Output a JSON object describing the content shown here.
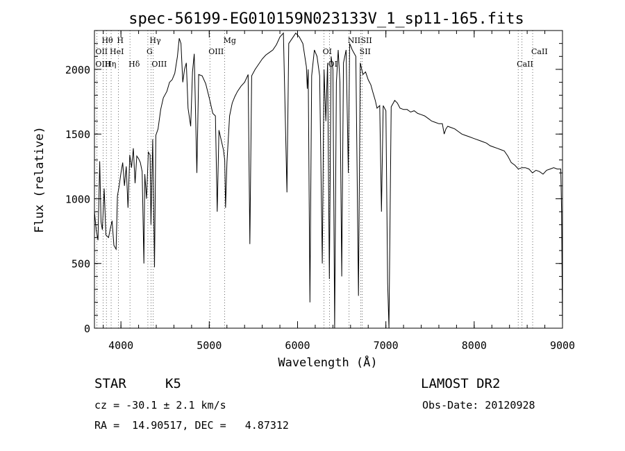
{
  "chart_data": {
    "type": "line",
    "title": "spec-56199-EG010159N023133V_1_sp11-165.fits",
    "xlabel": "Wavelength (Å)",
    "ylabel": "Flux (relative)",
    "xlim": [
      3700,
      9000
    ],
    "ylim": [
      0,
      2300
    ],
    "x_ticks": [
      4000,
      5000,
      6000,
      7000,
      8000,
      9000
    ],
    "y_ticks": [
      0,
      500,
      1000,
      1500,
      2000
    ],
    "x_minor_step": 200,
    "y_minor_step": 100,
    "grid": false,
    "series": [
      {
        "points": [
          [
            3700,
            900
          ],
          [
            3720,
            760
          ],
          [
            3740,
            680
          ],
          [
            3760,
            1290
          ],
          [
            3775,
            820
          ],
          [
            3790,
            760
          ],
          [
            3810,
            1080
          ],
          [
            3830,
            720
          ],
          [
            3860,
            700
          ],
          [
            3880,
            770
          ],
          [
            3900,
            830
          ],
          [
            3920,
            640
          ],
          [
            3945,
            610
          ],
          [
            3960,
            1020
          ],
          [
            3980,
            1100
          ],
          [
            4000,
            1200
          ],
          [
            4020,
            1280
          ],
          [
            4040,
            1100
          ],
          [
            4060,
            1250
          ],
          [
            4080,
            930
          ],
          [
            4100,
            1340
          ],
          [
            4120,
            1240
          ],
          [
            4140,
            1390
          ],
          [
            4160,
            1120
          ],
          [
            4180,
            1330
          ],
          [
            4200,
            1310
          ],
          [
            4220,
            1280
          ],
          [
            4240,
            1210
          ],
          [
            4260,
            500
          ],
          [
            4270,
            1190
          ],
          [
            4290,
            1000
          ],
          [
            4310,
            1360
          ],
          [
            4330,
            1340
          ],
          [
            4340,
            800
          ],
          [
            4360,
            1460
          ],
          [
            4380,
            470
          ],
          [
            4395,
            1490
          ],
          [
            4420,
            1540
          ],
          [
            4450,
            1690
          ],
          [
            4480,
            1780
          ],
          [
            4520,
            1830
          ],
          [
            4550,
            1900
          ],
          [
            4580,
            1920
          ],
          [
            4610,
            1970
          ],
          [
            4640,
            2100
          ],
          [
            4660,
            2240
          ],
          [
            4680,
            2200
          ],
          [
            4700,
            1900
          ],
          [
            4720,
            2000
          ],
          [
            4740,
            2050
          ],
          [
            4760,
            1700
          ],
          [
            4790,
            1560
          ],
          [
            4810,
            1980
          ],
          [
            4830,
            2120
          ],
          [
            4860,
            1200
          ],
          [
            4880,
            1960
          ],
          [
            4920,
            1950
          ],
          [
            4960,
            1890
          ],
          [
            5000,
            1780
          ],
          [
            5040,
            1660
          ],
          [
            5070,
            1640
          ],
          [
            5090,
            900
          ],
          [
            5110,
            1530
          ],
          [
            5140,
            1440
          ],
          [
            5160,
            1380
          ],
          [
            5175,
            1300
          ],
          [
            5185,
            930
          ],
          [
            5200,
            1280
          ],
          [
            5230,
            1640
          ],
          [
            5260,
            1740
          ],
          [
            5290,
            1790
          ],
          [
            5320,
            1830
          ],
          [
            5360,
            1870
          ],
          [
            5400,
            1900
          ],
          [
            5440,
            1960
          ],
          [
            5460,
            650
          ],
          [
            5480,
            1950
          ],
          [
            5520,
            2000
          ],
          [
            5560,
            2040
          ],
          [
            5600,
            2080
          ],
          [
            5640,
            2110
          ],
          [
            5680,
            2130
          ],
          [
            5720,
            2150
          ],
          [
            5760,
            2190
          ],
          [
            5800,
            2250
          ],
          [
            5840,
            2280
          ],
          [
            5880,
            1050
          ],
          [
            5900,
            2200
          ],
          [
            5940,
            2240
          ],
          [
            5980,
            2280
          ],
          [
            6020,
            2250
          ],
          [
            6060,
            2200
          ],
          [
            6100,
            2020
          ],
          [
            6110,
            1850
          ],
          [
            6120,
            2000
          ],
          [
            6140,
            200
          ],
          [
            6160,
            1950
          ],
          [
            6190,
            2150
          ],
          [
            6220,
            2100
          ],
          [
            6250,
            1950
          ],
          [
            6280,
            500
          ],
          [
            6300,
            2000
          ],
          [
            6320,
            1600
          ],
          [
            6340,
            2050
          ],
          [
            6360,
            380
          ],
          [
            6380,
            2100
          ],
          [
            6400,
            2000
          ],
          [
            6420,
            0
          ],
          [
            6440,
            1900
          ],
          [
            6460,
            2150
          ],
          [
            6480,
            1900
          ],
          [
            6500,
            400
          ],
          [
            6520,
            2050
          ],
          [
            6550,
            2150
          ],
          [
            6575,
            1200
          ],
          [
            6590,
            2200
          ],
          [
            6620,
            2150
          ],
          [
            6660,
            2100
          ],
          [
            6690,
            250
          ],
          [
            6710,
            2050
          ],
          [
            6740,
            1960
          ],
          [
            6770,
            1980
          ],
          [
            6800,
            1920
          ],
          [
            6830,
            1880
          ],
          [
            6850,
            1830
          ],
          [
            6880,
            1760
          ],
          [
            6900,
            1700
          ],
          [
            6930,
            1720
          ],
          [
            6950,
            900
          ],
          [
            6970,
            1720
          ],
          [
            7000,
            1680
          ],
          [
            7020,
            350
          ],
          [
            7035,
            0
          ],
          [
            7060,
            1710
          ],
          [
            7100,
            1760
          ],
          [
            7130,
            1740
          ],
          [
            7160,
            1700
          ],
          [
            7200,
            1690
          ],
          [
            7240,
            1690
          ],
          [
            7280,
            1670
          ],
          [
            7320,
            1680
          ],
          [
            7360,
            1660
          ],
          [
            7400,
            1650
          ],
          [
            7440,
            1640
          ],
          [
            7480,
            1620
          ],
          [
            7520,
            1600
          ],
          [
            7560,
            1590
          ],
          [
            7600,
            1580
          ],
          [
            7640,
            1580
          ],
          [
            7660,
            1500
          ],
          [
            7680,
            1540
          ],
          [
            7700,
            1560
          ],
          [
            7740,
            1550
          ],
          [
            7780,
            1540
          ],
          [
            7820,
            1520
          ],
          [
            7860,
            1500
          ],
          [
            7900,
            1490
          ],
          [
            7940,
            1480
          ],
          [
            7980,
            1470
          ],
          [
            8020,
            1460
          ],
          [
            8060,
            1450
          ],
          [
            8100,
            1440
          ],
          [
            8140,
            1430
          ],
          [
            8180,
            1410
          ],
          [
            8220,
            1400
          ],
          [
            8260,
            1390
          ],
          [
            8300,
            1380
          ],
          [
            8340,
            1370
          ],
          [
            8380,
            1330
          ],
          [
            8420,
            1280
          ],
          [
            8460,
            1260
          ],
          [
            8500,
            1230
          ],
          [
            8540,
            1240
          ],
          [
            8580,
            1240
          ],
          [
            8620,
            1230
          ],
          [
            8660,
            1200
          ],
          [
            8700,
            1220
          ],
          [
            8740,
            1210
          ],
          [
            8780,
            1190
          ],
          [
            8820,
            1220
          ],
          [
            8860,
            1230
          ],
          [
            8900,
            1240
          ],
          [
            8940,
            1230
          ],
          [
            8980,
            1230
          ],
          [
            8990,
            900
          ],
          [
            9000,
            10
          ]
        ]
      }
    ],
    "line_markers": [
      {
        "label": "Hθ",
        "x": 3798,
        "row": 0
      },
      {
        "label": "H",
        "x": 3970,
        "row": 0
      },
      {
        "label": "Hγ",
        "x": 4340,
        "row": 0
      },
      {
        "label": "Mg",
        "x": 5175,
        "row": 0
      },
      {
        "label": "NII",
        "x": 6584,
        "row": 0
      },
      {
        "label": "SII",
        "x": 6731,
        "row": 0
      },
      {
        "label": "OII",
        "x": 3727,
        "row": 1
      },
      {
        "label": "HeI",
        "x": 3889,
        "row": 1
      },
      {
        "label": "G",
        "x": 4305,
        "row": 1
      },
      {
        "label": "OIII",
        "x": 5007,
        "row": 1
      },
      {
        "label": "OI",
        "x": 6300,
        "row": 1
      },
      {
        "label": "SII",
        "x": 6717,
        "row": 1
      },
      {
        "label": "CaII",
        "x": 8662,
        "row": 1
      },
      {
        "label": "OIII",
        "x": 3727,
        "row": 2
      },
      {
        "label": "Hη",
        "x": 3835,
        "row": 2
      },
      {
        "label": "Hδ",
        "x": 4102,
        "row": 2
      },
      {
        "label": "OIII",
        "x": 4363,
        "row": 2
      },
      {
        "label": "OI",
        "x": 6363,
        "row": 2
      },
      {
        "label": "CaII",
        "x": 8498,
        "row": 2
      }
    ],
    "line_marker_lines": [
      3727,
      3798,
      3835,
      3889,
      3970,
      4102,
      4305,
      4340,
      4363,
      5007,
      5175,
      6300,
      6363,
      6584,
      6717,
      6731,
      8498,
      8542,
      8662
    ]
  },
  "info": {
    "object_class": "STAR",
    "subclass": "K5",
    "survey": "LAMOST DR2",
    "redshift": "cz = -30.1 ± 2.1 km/s",
    "obs_date": "Obs-Date: 20120928",
    "coords": "RA =  14.90517, DEC =   4.87312"
  }
}
